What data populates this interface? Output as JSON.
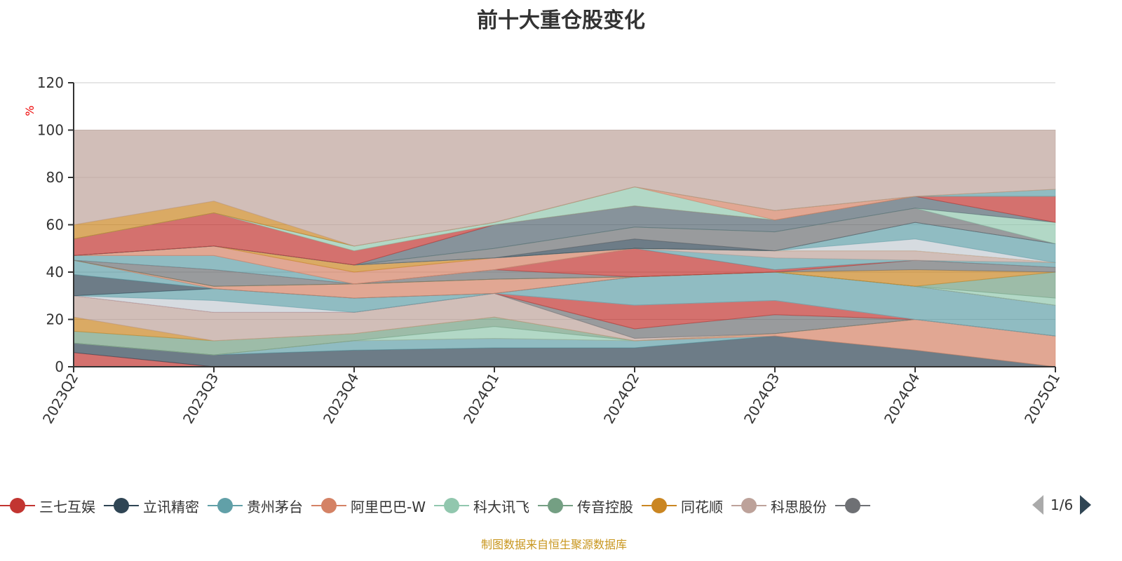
{
  "chart_data": {
    "type": "area",
    "stacked": true,
    "title": "前十大重仓股变化",
    "ylabel": "%",
    "xlabel": "",
    "ylim": [
      0,
      120
    ],
    "yticks": [
      0,
      20,
      40,
      60,
      80,
      100,
      120
    ],
    "grid": true,
    "categories": [
      "2023Q2",
      "2023Q3",
      "2023Q4",
      "2024Q1",
      "2024Q2",
      "2024Q3",
      "2024Q4",
      "2025Q1"
    ],
    "series": [
      {
        "name": "三七互娱",
        "color": "#c23531",
        "values": [
          6,
          0,
          0,
          0,
          0,
          0,
          0,
          0
        ]
      },
      {
        "name": "立讯精密",
        "color": "#2f4554",
        "values": [
          4,
          5,
          7,
          8,
          8,
          13,
          7,
          0
        ]
      },
      {
        "name": "贵州茅台",
        "color": "#61a0a8",
        "values": [
          0,
          0,
          4,
          4,
          3,
          0,
          0,
          0
        ]
      },
      {
        "name": "阿里巴巴-W",
        "color": "#d48265",
        "values": [
          0,
          0,
          0,
          0,
          0,
          1,
          13,
          13
        ]
      },
      {
        "name": "科大讯飞",
        "color": "#91c7ae",
        "values": [
          0,
          0,
          0,
          5,
          0,
          0,
          0,
          0
        ]
      },
      {
        "name": "传音控股",
        "color": "#749f83",
        "values": [
          5,
          6,
          3,
          4,
          0,
          0,
          0,
          0
        ]
      },
      {
        "name": "同花顺",
        "color": "#ca8622",
        "values": [
          6,
          0,
          0,
          0,
          0,
          0,
          0,
          0
        ]
      },
      {
        "name": "科思股份",
        "color": "#bda29a",
        "values": [
          9,
          12,
          9,
          10,
          1,
          0,
          0,
          0
        ]
      },
      {
        "name": "",
        "color": "#6e7074",
        "values": [
          0,
          0,
          0,
          0,
          4,
          8,
          0,
          0
        ]
      },
      {
        "name": "",
        "color": "#c23531",
        "values": [
          0,
          0,
          0,
          0,
          10,
          6,
          0,
          0
        ]
      },
      {
        "name": "",
        "color": "#c4ccd3",
        "values": [
          0,
          5,
          0,
          0,
          0,
          0,
          0,
          0
        ]
      },
      {
        "name": "",
        "color": "#61a0a8",
        "values": [
          0,
          5,
          6,
          0,
          12,
          12,
          14,
          13
        ]
      },
      {
        "name": "",
        "color": "#2f4554",
        "values": [
          9,
          0,
          0,
          0,
          0,
          0,
          0,
          0
        ]
      },
      {
        "name": "",
        "color": "#61a0a8",
        "values": [
          6,
          0,
          0,
          0,
          0,
          0,
          0,
          0
        ]
      },
      {
        "name": "",
        "color": "#d48265",
        "values": [
          0,
          1,
          6,
          6,
          0,
          0,
          0,
          0
        ]
      },
      {
        "name": "",
        "color": "#91c7ae",
        "values": [
          0,
          0,
          0,
          0,
          0,
          0,
          0,
          3
        ]
      },
      {
        "name": "",
        "color": "#749f83",
        "values": [
          0,
          0,
          0,
          0,
          0,
          0,
          0,
          11
        ]
      },
      {
        "name": "",
        "color": "#ca8622",
        "values": [
          0,
          0,
          0,
          0,
          0,
          0,
          7,
          0
        ]
      },
      {
        "name": "",
        "color": "#6e7074",
        "values": [
          0,
          7,
          0,
          4,
          0,
          0,
          4,
          2
        ]
      },
      {
        "name": "",
        "color": "#c23531",
        "values": [
          0,
          0,
          0,
          0,
          12,
          1,
          0,
          0
        ]
      },
      {
        "name": "",
        "color": "#61a0a8",
        "values": [
          2,
          6,
          0,
          0,
          0,
          5,
          0,
          2
        ]
      },
      {
        "name": "",
        "color": "#bda29a",
        "values": [
          0,
          0,
          0,
          0,
          0,
          3,
          4,
          0
        ]
      },
      {
        "name": "",
        "color": "#d48265",
        "values": [
          0,
          4,
          5,
          5,
          0,
          0,
          0,
          0
        ]
      },
      {
        "name": "",
        "color": "#ca8622",
        "values": [
          0,
          0,
          3,
          0,
          0,
          0,
          0,
          0
        ]
      },
      {
        "name": "",
        "color": "#c4ccd3",
        "values": [
          0,
          0,
          0,
          0,
          0,
          0,
          5,
          0
        ]
      },
      {
        "name": "",
        "color": "#61a0a8",
        "values": [
          0,
          0,
          0,
          0,
          0,
          0,
          7,
          8
        ]
      },
      {
        "name": "",
        "color": "#2f4554",
        "values": [
          0,
          0,
          0,
          0,
          4,
          0,
          0,
          0
        ]
      },
      {
        "name": "",
        "color": "#6e7074",
        "values": [
          0,
          0,
          0,
          4,
          5,
          8,
          6,
          0
        ]
      },
      {
        "name": "",
        "color": "#91c7ae",
        "values": [
          0,
          0,
          0,
          0,
          0,
          0,
          0,
          9
        ]
      },
      {
        "name": "",
        "color": "#546570",
        "values": [
          0,
          0,
          0,
          10,
          9,
          5,
          5,
          0
        ]
      },
      {
        "name": "",
        "color": "#c23531",
        "values": [
          7,
          14,
          6,
          0,
          0,
          0,
          0,
          11
        ]
      },
      {
        "name": "",
        "color": "#91c7ae",
        "values": [
          0,
          0,
          2,
          1,
          8,
          0,
          0,
          0
        ]
      },
      {
        "name": "",
        "color": "#d48265",
        "values": [
          0,
          0,
          0,
          0,
          0,
          4,
          0,
          0
        ]
      },
      {
        "name": "",
        "color": "#61a0a8",
        "values": [
          0,
          0,
          0,
          0,
          0,
          0,
          0,
          3
        ]
      },
      {
        "name": "",
        "color": "#ca8622",
        "values": [
          6,
          5,
          0,
          0,
          0,
          0,
          0,
          0
        ]
      },
      {
        "name": "",
        "color": "#bda29a",
        "values": [
          40,
          30,
          49,
          39,
          24,
          34,
          28,
          25
        ]
      }
    ]
  },
  "legend": {
    "items": [
      {
        "name": "三七互娱",
        "color": "#c23531"
      },
      {
        "name": "立讯精密",
        "color": "#2f4554"
      },
      {
        "name": "贵州茅台",
        "color": "#61a0a8"
      },
      {
        "name": "阿里巴巴-W",
        "color": "#d48265"
      },
      {
        "name": "科大讯飞",
        "color": "#91c7ae"
      },
      {
        "name": "传音控股",
        "color": "#749f83"
      },
      {
        "name": "同花顺",
        "color": "#ca8622"
      },
      {
        "name": "科思股份",
        "color": "#bda29a"
      },
      {
        "name": "",
        "color": "#6e7074"
      }
    ],
    "page": "1/6"
  },
  "source": "制图数据来自恒生聚源数据库"
}
